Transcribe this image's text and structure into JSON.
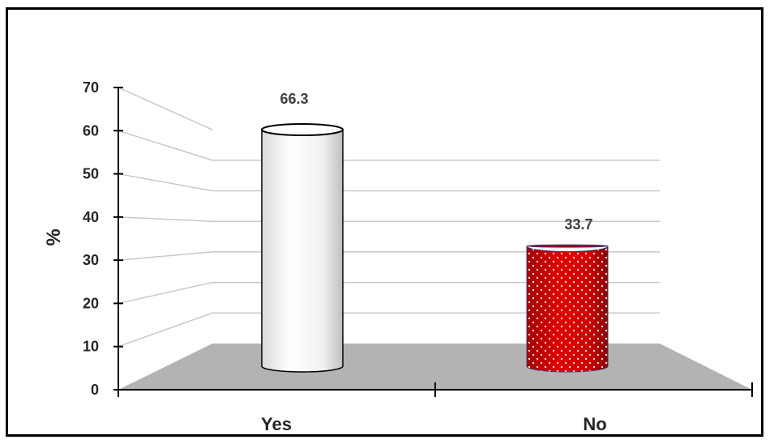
{
  "chart_data": {
    "type": "bar",
    "style": "3d-cylinder",
    "categories": [
      "Yes",
      "No"
    ],
    "values": [
      66.3,
      33.7
    ],
    "data_labels": [
      "66.3",
      "33.7"
    ],
    "ylabel": "%",
    "ylim": [
      0,
      70
    ],
    "yticks": [
      "0",
      "10",
      "20",
      "30",
      "40",
      "50",
      "60",
      "70"
    ],
    "grid": true,
    "legend": "none",
    "colors": {
      "yes_bar": "#ffffff",
      "no_bar": "#cc0000",
      "floor": "#b3b3b3",
      "gridline": "#c8c8c8"
    }
  }
}
